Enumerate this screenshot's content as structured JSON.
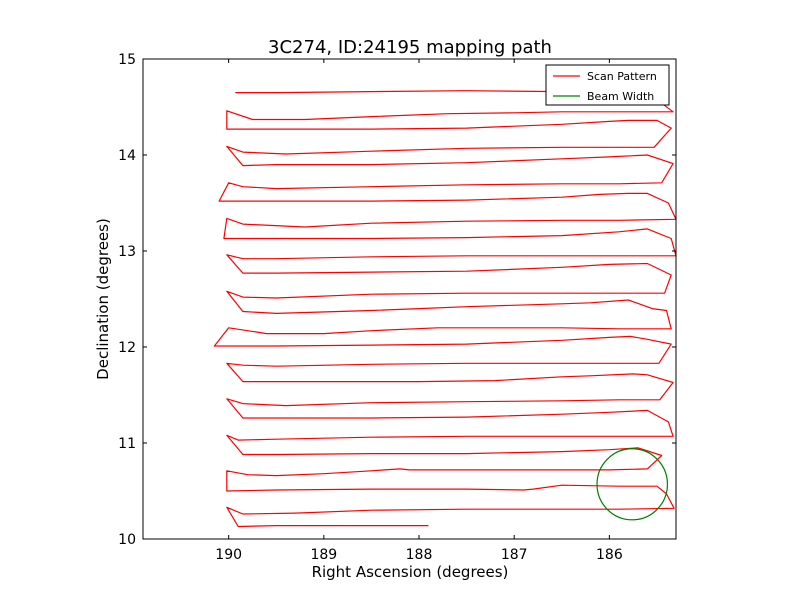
{
  "chart_data": {
    "type": "line",
    "title": "3C274, ID:24195 mapping path",
    "xlabel": "Right Ascension (degrees)",
    "ylabel": "Declination (degrees)",
    "xlim": [
      190.9,
      185.3
    ],
    "ylim": [
      10,
      15
    ],
    "x_inverted": true,
    "x_ticks": [
      190,
      189,
      188,
      187,
      186
    ],
    "y_ticks": [
      10,
      11,
      12,
      13,
      14,
      15
    ],
    "x_tick_labels": [
      "190",
      "189",
      "188",
      "187",
      "186"
    ],
    "y_tick_labels": [
      "10",
      "11",
      "12",
      "13",
      "14",
      "15"
    ],
    "grid": false,
    "legend": {
      "position": "top-right"
    },
    "series": [
      {
        "name": "Scan Pattern",
        "color": "#ff0000",
        "points": [
          [
            187.9,
            10.14
          ],
          [
            188.5,
            10.14
          ],
          [
            189.5,
            10.14
          ],
          [
            189.9,
            10.13
          ],
          [
            190.02,
            10.33
          ],
          [
            189.85,
            10.26
          ],
          [
            189.3,
            10.27
          ],
          [
            188.5,
            10.3
          ],
          [
            187.5,
            10.31
          ],
          [
            186.5,
            10.31
          ],
          [
            185.9,
            10.31
          ],
          [
            185.32,
            10.32
          ],
          [
            185.4,
            10.47
          ],
          [
            185.5,
            10.55
          ],
          [
            185.9,
            10.55
          ],
          [
            186.5,
            10.56
          ],
          [
            186.8,
            10.52
          ],
          [
            186.9,
            10.51
          ],
          [
            187.5,
            10.52
          ],
          [
            188.5,
            10.52
          ],
          [
            189.5,
            10.51
          ],
          [
            190.02,
            10.5
          ],
          [
            190.02,
            10.71
          ],
          [
            189.8,
            10.67
          ],
          [
            189.5,
            10.66
          ],
          [
            189.0,
            10.68
          ],
          [
            188.5,
            10.71
          ],
          [
            188.2,
            10.73
          ],
          [
            188.1,
            10.72
          ],
          [
            187.5,
            10.72
          ],
          [
            186.8,
            10.72
          ],
          [
            186.0,
            10.72
          ],
          [
            185.6,
            10.73
          ],
          [
            185.45,
            10.87
          ],
          [
            185.7,
            10.95
          ],
          [
            186.0,
            10.93
          ],
          [
            186.5,
            10.91
          ],
          [
            187.5,
            10.89
          ],
          [
            188.5,
            10.89
          ],
          [
            189.5,
            10.88
          ],
          [
            189.85,
            10.88
          ],
          [
            190.02,
            11.08
          ],
          [
            189.9,
            11.03
          ],
          [
            189.5,
            11.04
          ],
          [
            188.5,
            11.06
          ],
          [
            187.5,
            11.07
          ],
          [
            186.5,
            11.07
          ],
          [
            185.9,
            11.07
          ],
          [
            185.33,
            11.07
          ],
          [
            185.38,
            11.22
          ],
          [
            185.6,
            11.34
          ],
          [
            186.0,
            11.32
          ],
          [
            186.5,
            11.3
          ],
          [
            187.5,
            11.27
          ],
          [
            188.5,
            11.26
          ],
          [
            189.5,
            11.26
          ],
          [
            189.85,
            11.26
          ],
          [
            190.02,
            11.46
          ],
          [
            189.85,
            11.41
          ],
          [
            189.4,
            11.39
          ],
          [
            188.5,
            11.42
          ],
          [
            187.5,
            11.43
          ],
          [
            186.5,
            11.44
          ],
          [
            185.9,
            11.45
          ],
          [
            185.47,
            11.45
          ],
          [
            185.33,
            11.63
          ],
          [
            185.6,
            11.71
          ],
          [
            185.75,
            11.72
          ],
          [
            186.2,
            11.7
          ],
          [
            186.5,
            11.69
          ],
          [
            187.2,
            11.65
          ],
          [
            188.0,
            11.64
          ],
          [
            189.0,
            11.64
          ],
          [
            189.85,
            11.64
          ],
          [
            190.02,
            11.83
          ],
          [
            189.85,
            11.81
          ],
          [
            189.5,
            11.8
          ],
          [
            188.5,
            11.82
          ],
          [
            187.5,
            11.83
          ],
          [
            186.5,
            11.83
          ],
          [
            185.9,
            11.83
          ],
          [
            185.48,
            11.83
          ],
          [
            185.35,
            12.03
          ],
          [
            185.6,
            12.08
          ],
          [
            185.78,
            12.11
          ],
          [
            186.0,
            12.1
          ],
          [
            186.5,
            12.07
          ],
          [
            187.5,
            12.03
          ],
          [
            188.5,
            12.02
          ],
          [
            189.5,
            12.01
          ],
          [
            190.15,
            12.01
          ],
          [
            190.0,
            12.2
          ],
          [
            189.6,
            12.14
          ],
          [
            189.0,
            12.14
          ],
          [
            188.5,
            12.17
          ],
          [
            187.8,
            12.2
          ],
          [
            187.0,
            12.2
          ],
          [
            186.5,
            12.2
          ],
          [
            185.9,
            12.19
          ],
          [
            185.35,
            12.19
          ],
          [
            185.4,
            12.38
          ],
          [
            185.55,
            12.4
          ],
          [
            185.8,
            12.49
          ],
          [
            186.2,
            12.46
          ],
          [
            186.5,
            12.45
          ],
          [
            187.5,
            12.42
          ],
          [
            188.0,
            12.4
          ],
          [
            188.5,
            12.38
          ],
          [
            189.5,
            12.35
          ],
          [
            189.85,
            12.37
          ],
          [
            190.02,
            12.58
          ],
          [
            189.85,
            12.52
          ],
          [
            189.5,
            12.51
          ],
          [
            188.5,
            12.55
          ],
          [
            187.5,
            12.56
          ],
          [
            186.5,
            12.56
          ],
          [
            185.9,
            12.56
          ],
          [
            185.42,
            12.56
          ],
          [
            185.35,
            12.75
          ],
          [
            185.6,
            12.87
          ],
          [
            186.0,
            12.86
          ],
          [
            186.5,
            12.83
          ],
          [
            187.5,
            12.79
          ],
          [
            188.5,
            12.78
          ],
          [
            189.5,
            12.77
          ],
          [
            189.85,
            12.77
          ],
          [
            190.02,
            12.96
          ],
          [
            189.85,
            12.92
          ],
          [
            189.5,
            12.92
          ],
          [
            188.5,
            12.94
          ],
          [
            187.5,
            12.95
          ],
          [
            186.5,
            12.95
          ],
          [
            185.9,
            12.95
          ],
          [
            185.3,
            12.95
          ],
          [
            185.35,
            13.13
          ],
          [
            185.6,
            13.23
          ],
          [
            185.9,
            13.2
          ],
          [
            186.5,
            13.16
          ],
          [
            187.5,
            13.14
          ],
          [
            188.5,
            13.13
          ],
          [
            189.5,
            13.13
          ],
          [
            190.05,
            13.13
          ],
          [
            190.02,
            13.34
          ],
          [
            189.85,
            13.28
          ],
          [
            189.2,
            13.25
          ],
          [
            188.5,
            13.29
          ],
          [
            187.5,
            13.31
          ],
          [
            186.5,
            13.32
          ],
          [
            185.9,
            13.32
          ],
          [
            185.3,
            13.33
          ],
          [
            185.38,
            13.5
          ],
          [
            185.6,
            13.6
          ],
          [
            185.8,
            13.6
          ],
          [
            186.1,
            13.59
          ],
          [
            186.5,
            13.56
          ],
          [
            187.5,
            13.53
          ],
          [
            188.5,
            13.52
          ],
          [
            189.5,
            13.52
          ],
          [
            190.1,
            13.52
          ],
          [
            190.0,
            13.71
          ],
          [
            189.85,
            13.67
          ],
          [
            189.5,
            13.65
          ],
          [
            188.5,
            13.67
          ],
          [
            187.5,
            13.69
          ],
          [
            186.5,
            13.7
          ],
          [
            185.9,
            13.7
          ],
          [
            185.45,
            13.71
          ],
          [
            185.33,
            13.91
          ],
          [
            185.6,
            14.0
          ],
          [
            186.0,
            13.98
          ],
          [
            186.5,
            13.96
          ],
          [
            187.5,
            13.92
          ],
          [
            188.5,
            13.9
          ],
          [
            189.5,
            13.9
          ],
          [
            189.85,
            13.89
          ],
          [
            190.02,
            14.09
          ],
          [
            189.85,
            14.03
          ],
          [
            189.4,
            14.01
          ],
          [
            188.5,
            14.04
          ],
          [
            187.5,
            14.07
          ],
          [
            186.5,
            14.08
          ],
          [
            185.9,
            14.08
          ],
          [
            185.53,
            14.08
          ],
          [
            185.35,
            14.28
          ],
          [
            185.5,
            14.36
          ],
          [
            185.8,
            14.36
          ],
          [
            186.0,
            14.35
          ],
          [
            186.5,
            14.32
          ],
          [
            187.5,
            14.28
          ],
          [
            188.5,
            14.27
          ],
          [
            189.5,
            14.27
          ],
          [
            190.02,
            14.27
          ],
          [
            190.02,
            14.46
          ],
          [
            189.75,
            14.37
          ],
          [
            189.2,
            14.37
          ],
          [
            188.5,
            14.4
          ],
          [
            187.7,
            14.43
          ],
          [
            187.0,
            14.44
          ],
          [
            186.5,
            14.45
          ],
          [
            185.9,
            14.45
          ],
          [
            185.33,
            14.45
          ],
          [
            185.48,
            14.56
          ],
          [
            185.85,
            14.61
          ],
          [
            186.0,
            14.62
          ],
          [
            186.4,
            14.65
          ],
          [
            186.5,
            14.66
          ],
          [
            187.5,
            14.67
          ],
          [
            188.5,
            14.66
          ],
          [
            189.5,
            14.65
          ],
          [
            189.93,
            14.65
          ]
        ]
      },
      {
        "name": "Beam Width",
        "color": "#008000",
        "shape": "circle",
        "center": [
          185.76,
          10.57
        ],
        "radius_deg": 0.37
      }
    ]
  }
}
